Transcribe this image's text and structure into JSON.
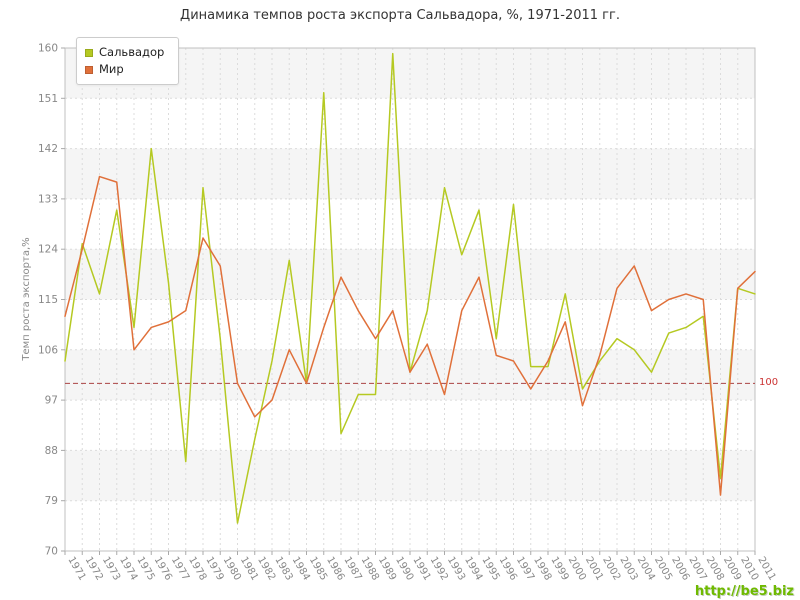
{
  "title": "Динамика темпов роста экспорта Сальвадора, %, 1971-2011 гг.",
  "y_axis_title": "Темп роста экспорта,%",
  "legend": {
    "items": [
      {
        "label": "Сальвадор",
        "color": "#b5c922"
      },
      {
        "label": "Мир",
        "color": "#e0703a"
      }
    ]
  },
  "reference_line": {
    "value": 100,
    "label": "100",
    "line_color": "#aa4444",
    "label_color": "#cc3333"
  },
  "watermark": {
    "text": "http://be5.biz",
    "color": "#6fba00"
  },
  "chart_data": {
    "type": "line",
    "title": "Динамика темпов роста экспорта Сальвадора, %, 1971-2011 гг.",
    "xlabel": "",
    "ylabel": "Темп роста экспорта,%",
    "ylim": [
      70,
      160
    ],
    "yticks": [
      70,
      79,
      88,
      97,
      106,
      115,
      124,
      133,
      142,
      151,
      160
    ],
    "grid": true,
    "legend_position": "top-left",
    "x": [
      "1971",
      "1972",
      "1973",
      "1974",
      "1975",
      "1976",
      "1977",
      "1978",
      "1979",
      "1980",
      "1981",
      "1982",
      "1983",
      "1984",
      "1985",
      "1986",
      "1987",
      "1988",
      "1989",
      "1990",
      "1991",
      "1992",
      "1993",
      "1994",
      "1995",
      "1996",
      "1997",
      "1998",
      "1999",
      "2000",
      "2001",
      "2002",
      "2003",
      "2004",
      "2005",
      "2006",
      "2007",
      "2008",
      "2009",
      "2010",
      "2011"
    ],
    "series": [
      {
        "name": "Сальвадор",
        "color": "#b5c922",
        "values": [
          104,
          125,
          116,
          131,
          110,
          142,
          118,
          86,
          135,
          108,
          75,
          90,
          104,
          122,
          100,
          152,
          91,
          98,
          98,
          159,
          102,
          113,
          135,
          123,
          131,
          108,
          132,
          103,
          103,
          116,
          99,
          104,
          108,
          106,
          102,
          109,
          110,
          112,
          83,
          117,
          116
        ]
      },
      {
        "name": "Мир",
        "color": "#e0703a",
        "values": [
          112,
          124,
          137,
          136,
          106,
          110,
          111,
          113,
          126,
          121,
          100,
          94,
          97,
          106,
          100,
          110,
          119,
          113,
          108,
          113,
          102,
          107,
          98,
          113,
          119,
          105,
          104,
          99,
          104,
          111,
          96,
          105,
          117,
          121,
          113,
          115,
          116,
          115,
          80,
          117,
          120
        ]
      }
    ]
  }
}
